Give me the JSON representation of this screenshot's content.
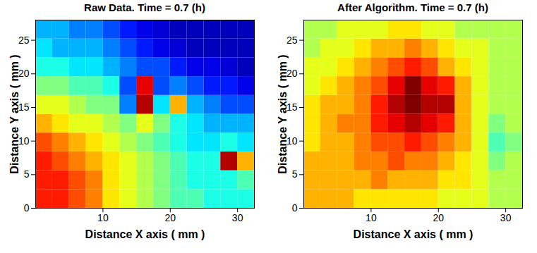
{
  "chart_data": [
    {
      "type": "heatmap",
      "title": "Raw Data. Time = 0.7 (h)",
      "x_label": "Distance X axis ( mm )",
      "y_label": "Distance Y axis ( mm )",
      "xlim": [
        0,
        32.5
      ],
      "ylim": [
        0,
        28
      ],
      "xticks": [
        10,
        20,
        30
      ],
      "yticks": [
        0,
        5,
        10,
        15,
        20,
        25
      ],
      "x_edges": [
        0,
        2.5,
        5,
        7.5,
        10,
        12.5,
        15,
        17.5,
        20,
        22.5,
        25,
        27.5,
        30,
        32.5
      ],
      "y_edges": [
        0,
        2.8,
        5.6,
        8.4,
        11.2,
        14,
        16.8,
        19.6,
        22.4,
        25.2,
        28
      ],
      "clim": [
        0,
        1
      ],
      "values": [
        [
          0.85,
          0.85,
          0.8,
          0.75,
          0.65,
          0.6,
          0.55,
          0.5,
          0.45,
          0.45,
          0.4,
          0.4,
          0.4
        ],
        [
          0.85,
          0.85,
          0.8,
          0.75,
          0.65,
          0.6,
          0.55,
          0.5,
          0.45,
          0.4,
          0.4,
          0.4,
          0.45
        ],
        [
          0.85,
          0.8,
          0.75,
          0.7,
          0.65,
          0.6,
          0.55,
          0.5,
          0.45,
          0.4,
          0.4,
          0.95,
          0.7
        ],
        [
          0.8,
          0.75,
          0.7,
          0.65,
          0.6,
          0.55,
          0.5,
          0.45,
          0.4,
          0.35,
          0.35,
          0.4,
          0.35
        ],
        [
          0.7,
          0.65,
          0.6,
          0.6,
          0.55,
          0.5,
          0.6,
          0.5,
          0.4,
          0.35,
          0.3,
          0.3,
          0.3
        ],
        [
          0.6,
          0.6,
          0.55,
          0.5,
          0.5,
          0.25,
          0.95,
          0.35,
          0.7,
          0.3,
          0.25,
          0.2,
          0.2
        ],
        [
          0.5,
          0.5,
          0.45,
          0.45,
          0.4,
          0.2,
          0.9,
          0.2,
          0.25,
          0.2,
          0.15,
          0.15,
          0.1
        ],
        [
          0.4,
          0.4,
          0.35,
          0.35,
          0.3,
          0.25,
          0.2,
          0.2,
          0.15,
          0.1,
          0.1,
          0.08,
          0.05
        ],
        [
          0.35,
          0.3,
          0.3,
          0.3,
          0.25,
          0.2,
          0.15,
          0.1,
          0.08,
          0.05,
          0.05,
          0.05,
          0.05
        ],
        [
          0.3,
          0.3,
          0.25,
          0.25,
          0.2,
          0.15,
          0.1,
          0.08,
          0.05,
          0.05,
          0.05,
          0.05,
          0.05
        ]
      ]
    },
    {
      "type": "heatmap",
      "title": "After Algorithm. Time = 0.7 (h)",
      "x_label": "Distance X axis ( mm )",
      "y_label": "Distance Y axis ( mm )",
      "xlim": [
        0,
        32.5
      ],
      "ylim": [
        0,
        28
      ],
      "xticks": [
        10,
        20,
        30
      ],
      "yticks": [
        0,
        5,
        10,
        15,
        20,
        25
      ],
      "x_edges": [
        0,
        2.5,
        5,
        7.5,
        10,
        12.5,
        15,
        17.5,
        20,
        22.5,
        25,
        27.5,
        30,
        32.5
      ],
      "y_edges": [
        0,
        2.8,
        5.6,
        8.4,
        11.2,
        14,
        16.8,
        19.6,
        22.4,
        25.2,
        28
      ],
      "clim": [
        0,
        1
      ],
      "values": [
        [
          0.7,
          0.7,
          0.7,
          0.65,
          0.65,
          0.65,
          0.65,
          0.65,
          0.6,
          0.6,
          0.6,
          0.55,
          0.55
        ],
        [
          0.7,
          0.7,
          0.7,
          0.7,
          0.75,
          0.7,
          0.7,
          0.7,
          0.65,
          0.65,
          0.6,
          0.55,
          0.55
        ],
        [
          0.7,
          0.7,
          0.7,
          0.75,
          0.75,
          0.8,
          0.75,
          0.75,
          0.7,
          0.65,
          0.6,
          0.5,
          0.55
        ],
        [
          0.65,
          0.7,
          0.7,
          0.75,
          0.8,
          0.8,
          0.85,
          0.8,
          0.75,
          0.7,
          0.6,
          0.45,
          0.5
        ],
        [
          0.65,
          0.7,
          0.75,
          0.75,
          0.85,
          0.9,
          0.95,
          0.9,
          0.85,
          0.7,
          0.6,
          0.5,
          0.55
        ],
        [
          0.65,
          0.7,
          0.7,
          0.75,
          0.85,
          0.95,
          1.0,
          0.95,
          0.95,
          0.7,
          0.6,
          0.55,
          0.55
        ],
        [
          0.6,
          0.65,
          0.7,
          0.75,
          0.8,
          0.9,
          1.0,
          0.9,
          0.85,
          0.7,
          0.6,
          0.55,
          0.55
        ],
        [
          0.6,
          0.6,
          0.65,
          0.7,
          0.75,
          0.8,
          0.85,
          0.8,
          0.7,
          0.65,
          0.6,
          0.55,
          0.55
        ],
        [
          0.55,
          0.6,
          0.6,
          0.65,
          0.7,
          0.7,
          0.75,
          0.7,
          0.65,
          0.6,
          0.6,
          0.55,
          0.55
        ],
        [
          0.55,
          0.55,
          0.6,
          0.6,
          0.6,
          0.65,
          0.65,
          0.6,
          0.6,
          0.55,
          0.55,
          0.55,
          0.55
        ]
      ]
    }
  ]
}
